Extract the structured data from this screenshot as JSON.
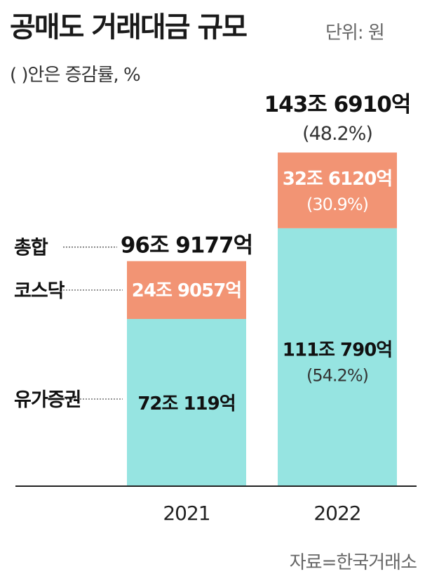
{
  "header": {
    "title": "공매도 거래대금 규모",
    "unit": "단위: 원",
    "note": "(  )안은 증감률, %"
  },
  "source": "자료=한국거래소",
  "colors": {
    "kospi": "#96e4e1",
    "kosdaq": "#f29474",
    "axis": "#222222",
    "leader": "#555555"
  },
  "chart_data": {
    "type": "bar",
    "stacked": true,
    "categories": [
      "2021",
      "2022"
    ],
    "series": [
      {
        "name": "유가증권",
        "values": [
          72.0119,
          111.079
        ],
        "labels": [
          "72조 119억",
          "111조 790억"
        ],
        "changes": [
          "",
          "(54.2%)"
        ]
      },
      {
        "name": "코스닥",
        "values": [
          24.9057,
          32.612
        ],
        "labels": [
          "24조 9057억",
          "32조 6120억"
        ],
        "changes": [
          "",
          "(30.9%)"
        ]
      }
    ],
    "totals": {
      "name": "총합",
      "values": [
        96.9177,
        143.691
      ],
      "labels": [
        "96조 9177억",
        "143조 6910억"
      ],
      "changes": [
        "",
        "(48.2%)"
      ]
    }
  }
}
